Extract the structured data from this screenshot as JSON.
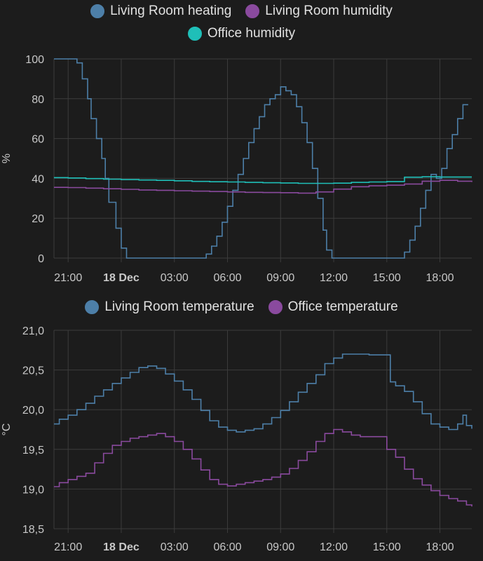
{
  "charts": [
    {
      "id": "humidity",
      "ylabel": "%",
      "ylim": [
        0,
        100
      ],
      "yticks": [
        0,
        20,
        40,
        60,
        80,
        100
      ],
      "ytick_labels": [
        "0",
        "20",
        "40",
        "60",
        "80",
        "100"
      ],
      "xticks": [
        21,
        24,
        27,
        30,
        33,
        36,
        39,
        42
      ],
      "xtick_labels": [
        "21:00",
        "18 Dec",
        "03:00",
        "06:00",
        "09:00",
        "12:00",
        "15:00",
        "18:00"
      ],
      "xlim": [
        20.2,
        43.8
      ],
      "legend": [
        {
          "name": "Living Room heating",
          "color": "#4d7fa8"
        },
        {
          "name": "Living Room humidity",
          "color": "#8a4a9e"
        },
        {
          "name": "Office humidity",
          "color": "#1fbfb8"
        }
      ]
    },
    {
      "id": "temperature",
      "ylabel": "°C",
      "ylim": [
        18.5,
        21.0
      ],
      "yticks": [
        18.5,
        19.0,
        19.5,
        20.0,
        20.5,
        21.0
      ],
      "ytick_labels": [
        "18,5",
        "19,0",
        "19,5",
        "20,0",
        "20,5",
        "21,0"
      ],
      "xticks": [
        21,
        24,
        27,
        30,
        33,
        36,
        39,
        42
      ],
      "xtick_labels": [
        "21:00",
        "18 Dec",
        "03:00",
        "06:00",
        "09:00",
        "12:00",
        "15:00",
        "18:00"
      ],
      "xlim": [
        20.2,
        43.8
      ],
      "legend": [
        {
          "name": "Living Room temperature",
          "color": "#4d7fa8"
        },
        {
          "name": "Office temperature",
          "color": "#8a4a9e"
        }
      ]
    }
  ],
  "chart_data": [
    {
      "type": "line",
      "ylabel": "%",
      "ylim": [
        0,
        100
      ],
      "series": [
        {
          "name": "Living Room heating",
          "color": "#4d7fa8",
          "x": [
            20.2,
            21.2,
            21.5,
            21.8,
            22.1,
            22.3,
            22.6,
            22.9,
            23.1,
            23.3,
            23.7,
            24.0,
            24.3,
            25.0,
            27.0,
            28.5,
            28.8,
            29.1,
            29.4,
            29.7,
            30.0,
            30.3,
            30.6,
            30.9,
            31.2,
            31.5,
            31.8,
            32.1,
            32.4,
            32.7,
            33.0,
            33.3,
            33.6,
            33.9,
            34.2,
            34.5,
            34.8,
            35.1,
            35.4,
            35.6,
            35.9,
            36.2,
            37.0,
            38.6,
            39.6,
            40.0,
            40.3,
            40.6,
            40.9,
            41.2,
            41.5,
            41.8,
            42.1,
            42.4,
            42.7,
            43.0,
            43.3,
            43.6
          ],
          "y": [
            100,
            100,
            98,
            90,
            80,
            70,
            60,
            50,
            40,
            28,
            15,
            5,
            0,
            0,
            0,
            0,
            2,
            6,
            11,
            18,
            26,
            34,
            42,
            50,
            58,
            65,
            71,
            77,
            80,
            82,
            86,
            84,
            82,
            76,
            68,
            58,
            45,
            30,
            14,
            4,
            0,
            0,
            0,
            0,
            0,
            3,
            9,
            16,
            25,
            34,
            42,
            40,
            45,
            55,
            62,
            70,
            77,
            77
          ],
          "step": true
        },
        {
          "name": "Living Room humidity",
          "color": "#8a4a9e",
          "x": [
            20.2,
            21.0,
            22.0,
            23.0,
            24.0,
            25.0,
            26.0,
            27.0,
            28.0,
            29.0,
            30.0,
            31.0,
            32.0,
            33.0,
            34.0,
            35.0,
            36.0,
            37.0,
            38.0,
            39.0,
            40.0,
            41.0,
            42.0,
            43.0,
            43.8
          ],
          "y": [
            35.5,
            35.4,
            35.1,
            34.8,
            34.5,
            34.2,
            34.0,
            33.8,
            33.6,
            33.4,
            33.2,
            33.0,
            32.9,
            32.8,
            32.6,
            33.2,
            34.6,
            35.8,
            36.3,
            36.6,
            37.2,
            38.6,
            39.0,
            38.6,
            38.2
          ],
          "step": true
        },
        {
          "name": "Office humidity",
          "color": "#1fbfb8",
          "x": [
            20.2,
            21.0,
            22.0,
            23.0,
            24.0,
            25.0,
            26.0,
            27.0,
            28.0,
            29.0,
            30.0,
            31.0,
            32.0,
            33.0,
            34.0,
            35.0,
            36.0,
            37.0,
            38.0,
            39.0,
            40.0,
            41.0,
            42.0,
            43.0,
            43.8
          ],
          "y": [
            40.4,
            40.2,
            39.9,
            39.6,
            39.4,
            39.2,
            39.0,
            38.8,
            38.5,
            38.3,
            38.2,
            38.0,
            37.8,
            37.7,
            37.5,
            37.5,
            37.6,
            38.0,
            38.2,
            38.4,
            40.6,
            40.8,
            40.7,
            40.7,
            40.7
          ],
          "step": true
        }
      ]
    },
    {
      "type": "line",
      "ylabel": "°C",
      "ylim": [
        18.5,
        21.0
      ],
      "series": [
        {
          "name": "Living Room temperature",
          "color": "#4d7fa8",
          "x": [
            20.2,
            20.5,
            21.0,
            21.5,
            22.0,
            22.5,
            23.0,
            23.5,
            24.0,
            24.5,
            25.0,
            25.5,
            26.0,
            26.5,
            27.0,
            27.5,
            28.0,
            28.5,
            29.0,
            29.5,
            30.0,
            30.5,
            31.0,
            31.5,
            32.0,
            32.5,
            33.0,
            33.5,
            34.0,
            34.5,
            35.0,
            35.5,
            36.0,
            36.5,
            37.0,
            37.5,
            38.0,
            38.5,
            39.0,
            39.2,
            39.5,
            40.0,
            40.5,
            41.0,
            41.5,
            42.0,
            42.5,
            43.0,
            43.3,
            43.5,
            43.8
          ],
          "y": [
            19.82,
            19.88,
            19.93,
            20.0,
            20.08,
            20.17,
            20.25,
            20.33,
            20.4,
            20.47,
            20.53,
            20.55,
            20.52,
            20.45,
            20.36,
            20.25,
            20.13,
            19.99,
            19.86,
            19.78,
            19.74,
            19.72,
            19.74,
            19.76,
            19.82,
            19.9,
            19.99,
            20.1,
            20.22,
            20.33,
            20.44,
            20.58,
            20.65,
            20.7,
            20.7,
            20.7,
            20.69,
            20.69,
            20.69,
            20.35,
            20.3,
            20.23,
            20.1,
            19.95,
            19.82,
            19.78,
            19.75,
            19.82,
            19.93,
            19.8,
            19.76
          ],
          "step": true
        },
        {
          "name": "Office temperature",
          "color": "#8a4a9e",
          "x": [
            20.2,
            20.5,
            21.0,
            21.5,
            22.0,
            22.5,
            23.0,
            23.5,
            24.0,
            24.5,
            25.0,
            25.5,
            26.0,
            26.5,
            27.0,
            27.5,
            28.0,
            28.5,
            29.0,
            29.5,
            30.0,
            30.5,
            31.0,
            31.5,
            32.0,
            32.5,
            33.0,
            33.5,
            34.0,
            34.5,
            35.0,
            35.5,
            36.0,
            36.5,
            37.0,
            37.5,
            38.0,
            38.5,
            39.0,
            39.5,
            40.0,
            40.5,
            41.0,
            41.5,
            42.0,
            42.5,
            43.0,
            43.5,
            43.8
          ],
          "y": [
            19.03,
            19.08,
            19.12,
            19.16,
            19.2,
            19.33,
            19.45,
            19.55,
            19.6,
            19.64,
            19.66,
            19.68,
            19.7,
            19.66,
            19.6,
            19.5,
            19.38,
            19.24,
            19.12,
            19.06,
            19.04,
            19.06,
            19.08,
            19.1,
            19.12,
            19.15,
            19.19,
            19.26,
            19.36,
            19.47,
            19.6,
            19.7,
            19.75,
            19.72,
            19.68,
            19.66,
            19.66,
            19.66,
            19.5,
            19.4,
            19.25,
            19.13,
            19.05,
            18.98,
            18.92,
            18.88,
            18.85,
            18.8,
            18.78
          ],
          "step": true
        }
      ]
    }
  ]
}
